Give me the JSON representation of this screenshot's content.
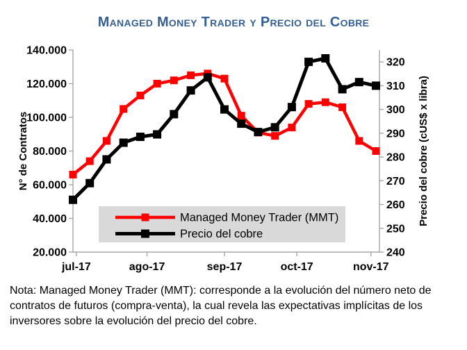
{
  "title": "Managed Money Trader y Precio del Cobre",
  "note": "Nota: Managed Money Trader (MMT): corresponde a la evolución del número neto de contratos de futuros (compra-venta), la cual revela las expectativas implícitas de los inversores sobre la evolución del precio del cobre.",
  "colors": {
    "title_blue": "#365F91",
    "mmt_red": "#FF0000",
    "copper_black": "#000000",
    "legend_background": "#D9D9D9",
    "axis_gray": "#A6A6A6"
  },
  "chart_data": {
    "type": "line",
    "frequency": "weekly",
    "n_points": 19,
    "x_tick_labels": [
      "jul-17",
      "ago-17",
      "sep-17",
      "oct-17",
      "nov-17"
    ],
    "x_tick_positions_weeks": [
      0.2,
      4.4,
      9.0,
      13.3,
      17.7
    ],
    "series": [
      {
        "name": "Managed Money Trader (MMT)",
        "axis": "left",
        "color": "#FF0000",
        "marker": "square",
        "values": [
          66000,
          74000,
          86000,
          105000,
          113000,
          120000,
          122000,
          125000,
          126000,
          123000,
          101000,
          91000,
          89000,
          94000,
          108000,
          109000,
          106000,
          86000,
          80000
        ]
      },
      {
        "name": "Precio del cobre",
        "axis": "right",
        "color": "#000000",
        "marker": "square",
        "values": [
          262,
          269,
          279,
          286,
          288.5,
          289.5,
          298,
          308,
          313.5,
          300,
          294,
          290.5,
          292.5,
          301,
          320,
          321.5,
          308.5,
          311.5,
          310
        ]
      }
    ],
    "y_left": {
      "label": "N° de Contratos",
      "min": 20000,
      "max": 140000,
      "step": 20000,
      "tick_labels": [
        "20.000",
        "40.000",
        "60.000",
        "80.000",
        "100.000",
        "120.000",
        "140.000"
      ]
    },
    "y_right": {
      "label": "Precio del cobre (cUS$ x libra)",
      "min": 240,
      "axis_top_value": 325,
      "step": 10,
      "tick_labels": [
        "240",
        "250",
        "260",
        "270",
        "280",
        "290",
        "300",
        "310",
        "320"
      ]
    },
    "legend": {
      "position": "inside-bottom-center",
      "background": "#D9D9D9",
      "entries": [
        "Managed Money Trader (MMT)",
        "Precio del cobre"
      ]
    },
    "grid": false
  }
}
